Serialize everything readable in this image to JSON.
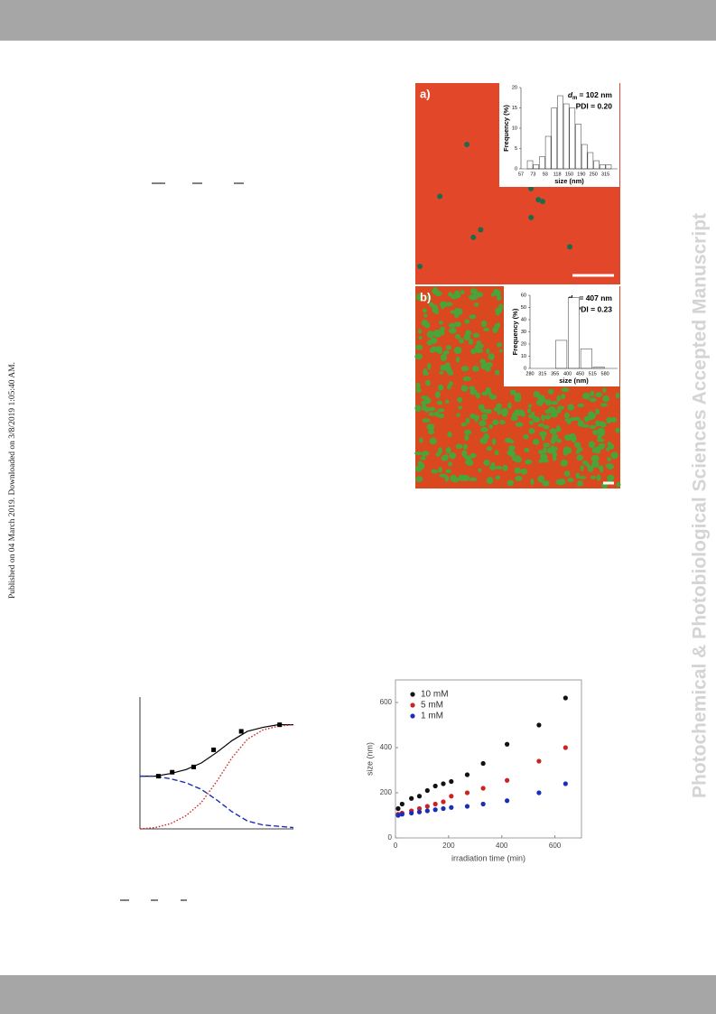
{
  "page": {
    "side_left": "Published on 04 March 2019. Downloaded on 3/8/2019 1:05:40 AM.",
    "side_right": "Photochemical & Photobiological Sciences Accepted Manuscript"
  },
  "chart_data": [
    {
      "type": "bar",
      "panel_label": "a)",
      "stat_symbol": "d",
      "stat_subscript": "m",
      "stat_value": "= 102 nm",
      "pdi": "PDI = 0.20",
      "x_label": "size (nm)",
      "y_label": "Frequency (%)",
      "categories": [
        "57",
        null,
        "73",
        null,
        "93",
        null,
        "118",
        null,
        "150",
        null,
        "190",
        null,
        "250",
        null,
        "315",
        null
      ],
      "values": [
        0,
        2,
        1,
        3,
        8,
        15,
        18,
        16,
        15,
        11,
        6,
        4,
        2,
        1,
        1,
        0
      ],
      "ylim": [
        0,
        20
      ],
      "yticks": [
        0,
        5,
        10,
        15,
        20
      ],
      "color": "#ffffff"
    },
    {
      "type": "bar",
      "panel_label": "b)",
      "stat_symbol": "d",
      "stat_subscript": "m",
      "stat_value": "= 407 nm",
      "pdi": "PDI = 0.23",
      "x_label": "size (nm)",
      "y_label": "Frequency (%)",
      "categories": [
        "280",
        "315",
        "355",
        "400",
        "450",
        "515",
        "580"
      ],
      "values": [
        0,
        0,
        23,
        58,
        16,
        1,
        0
      ],
      "ylim": [
        0,
        60
      ],
      "yticks": [
        0,
        10,
        20,
        30,
        40,
        50,
        60
      ],
      "color": "#ffffff"
    },
    {
      "type": "scatter",
      "x_label": "irradiation time (min)",
      "y_label": "size (nm)",
      "x": [
        10,
        25,
        60,
        90,
        120,
        150,
        180,
        210,
        270,
        330,
        420,
        540,
        640
      ],
      "series": [
        {
          "name": "10 mM",
          "color": "#111111",
          "values": [
            130,
            150,
            175,
            185,
            210,
            230,
            240,
            250,
            280,
            330,
            415,
            500,
            620
          ]
        },
        {
          "name": "5 mM",
          "color": "#cc2222",
          "values": [
            105,
            110,
            120,
            130,
            140,
            150,
            160,
            185,
            200,
            220,
            255,
            340,
            400
          ]
        },
        {
          "name": "1 mM",
          "color": "#1a2fb8",
          "values": [
            100,
            105,
            110,
            115,
            120,
            125,
            130,
            135,
            140,
            150,
            165,
            200,
            240
          ]
        }
      ],
      "xlim": [
        0,
        700
      ],
      "xticks": [
        0,
        200,
        400,
        600
      ],
      "ylim": [
        0,
        700
      ],
      "yticks": [
        0,
        200,
        400,
        600
      ],
      "legend": "upper left"
    },
    {
      "type": "line",
      "xlim": [
        0,
        10
      ],
      "ylim": [
        0,
        1
      ],
      "x": [
        0,
        1,
        2,
        3,
        4,
        5,
        6,
        7,
        8,
        9,
        10
      ],
      "series": [
        {
          "color": "#000000",
          "style": "solid",
          "values": [
            0.4,
            0.4,
            0.42,
            0.45,
            0.5,
            0.58,
            0.67,
            0.74,
            0.77,
            0.79,
            0.79
          ]
        },
        {
          "color": "#1a2fb8",
          "style": "dashed",
          "values": [
            0.4,
            0.4,
            0.38,
            0.35,
            0.3,
            0.22,
            0.13,
            0.06,
            0.03,
            0.02,
            0.01
          ]
        },
        {
          "color": "#cc2222",
          "style": "dotted",
          "values": [
            0.0,
            0.01,
            0.04,
            0.1,
            0.2,
            0.36,
            0.54,
            0.68,
            0.75,
            0.78,
            0.79
          ]
        },
        {
          "color": "#000000",
          "marker": "square",
          "x": [
            1.2,
            2.1,
            3.5,
            4.8,
            6.6,
            9.1
          ],
          "values": [
            0.4,
            0.43,
            0.47,
            0.6,
            0.74,
            0.79
          ]
        }
      ]
    }
  ]
}
